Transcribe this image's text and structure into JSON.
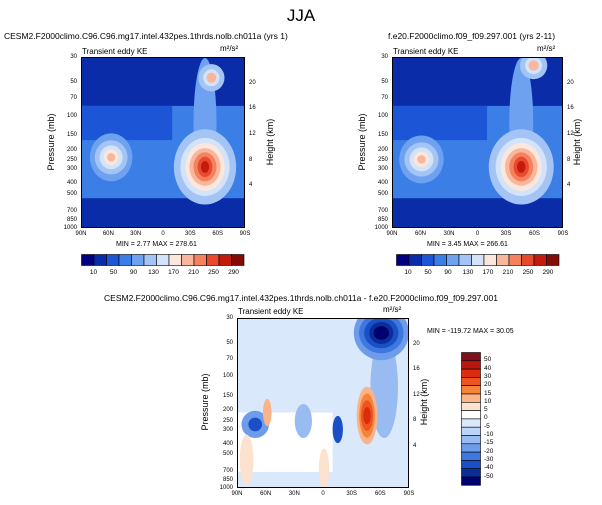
{
  "page_title": "JJA",
  "chart_data": [
    {
      "type": "heatmap",
      "title": "CESM2.F2000climo.C96.C96.mg17.intel.432pes.1thrds.nolb.ch011a (yrs 1)",
      "subtitle": "Transient eddy KE",
      "units": "m²/s²",
      "xlabel": "",
      "ylabel": "Pressure (mb)",
      "ylabel_right": "Height (km)",
      "x_ticks": [
        "90N",
        "60N",
        "30N",
        "0",
        "30S",
        "60S",
        "90S"
      ],
      "y_ticks": [
        "30",
        "50",
        "70",
        "100",
        "150",
        "200",
        "250",
        "300",
        "400",
        "500",
        "700",
        "850",
        "1000"
      ],
      "y_ticks_right": [
        "20",
        "16",
        "12",
        "8",
        "4"
      ],
      "ylim": [
        1000,
        30
      ],
      "y_scale": "log",
      "min_max_text": "MIN =   2.77  MAX = 278.61",
      "colorbar_levels": [
        "10",
        "50",
        "90",
        "130",
        "170",
        "210",
        "250",
        "290"
      ],
      "features": [
        {
          "lat": -45,
          "p": 280,
          "max": 278.61
        },
        {
          "lat": 58,
          "p": 230,
          "max": 170
        },
        {
          "lat": -52,
          "p": 45,
          "max": 120
        }
      ]
    },
    {
      "type": "heatmap",
      "title": "f.e20.F2000climo.f09_f09.297.001 (yrs 2-11)",
      "subtitle": "Transient eddy KE",
      "units": "m²/s²",
      "xlabel": "",
      "ylabel": "Pressure (mb)",
      "ylabel_right": "Height (km)",
      "x_ticks": [
        "90N",
        "60N",
        "30N",
        "0",
        "30S",
        "60S",
        "90S"
      ],
      "y_ticks": [
        "30",
        "50",
        "70",
        "100",
        "150",
        "200",
        "250",
        "300",
        "400",
        "500",
        "700",
        "850",
        "1000"
      ],
      "y_ticks_right": [
        "20",
        "16",
        "12",
        "8",
        "4"
      ],
      "ylim": [
        1000,
        30
      ],
      "y_scale": "log",
      "min_max_text": "MIN =   3.45  MAX = 266.61",
      "colorbar_levels": [
        "10",
        "50",
        "90",
        "130",
        "170",
        "210",
        "250",
        "290"
      ],
      "features": [
        {
          "lat": -45,
          "p": 280,
          "max": 266.61
        },
        {
          "lat": 60,
          "p": 240,
          "max": 160
        },
        {
          "lat": -58,
          "p": 35,
          "max": 180
        }
      ]
    },
    {
      "type": "heatmap",
      "title": "CESM2.F2000climo.C96.C96.mg17.intel.432pes.1thrds.nolb.ch011a - f.e20.F2000climo.f09_f09.297.001",
      "subtitle": "Transient eddy KE",
      "units": "m²/s²",
      "xlabel": "",
      "ylabel": "Pressure (mb)",
      "ylabel_right": "Height (km)",
      "x_ticks": [
        "90N",
        "60N",
        "30N",
        "0",
        "30S",
        "60S",
        "90S"
      ],
      "y_ticks": [
        "30",
        "50",
        "70",
        "100",
        "150",
        "200",
        "250",
        "300",
        "400",
        "500",
        "700",
        "850",
        "1000"
      ],
      "y_ticks_right": [
        "20",
        "16",
        "12",
        "8",
        "4"
      ],
      "ylim": [
        1000,
        30
      ],
      "y_scale": "log",
      "min_max_text": "MIN = -119.72  MAX =  30.05",
      "colorbar_levels": [
        "50",
        "40",
        "30",
        "20",
        "15",
        "10",
        "5",
        "0",
        "-5",
        "-10",
        "-15",
        "-20",
        "-30",
        "-40",
        "-50"
      ],
      "features": [
        {
          "lat": -60,
          "p": 40,
          "max": -119.72
        },
        {
          "lat": -45,
          "p": 220,
          "max": 30.05
        }
      ]
    }
  ],
  "colors": {
    "seq": [
      "#000080",
      "#0a2ca8",
      "#1c55d6",
      "#3a7ee6",
      "#6ea2f0",
      "#a3c4f5",
      "#d2e3fa",
      "#fbe7dd",
      "#f8b79d",
      "#f4825f",
      "#e84a2e",
      "#c41c0c",
      "#820c06"
    ],
    "div": [
      "#80101c",
      "#b8180f",
      "#dc2b0e",
      "#ed5520",
      "#f6833a",
      "#fbb48a",
      "#fde2cf",
      "#ffffff",
      "#dae8fb",
      "#bcd4f7",
      "#98bbf2",
      "#6f9cea",
      "#3e78de",
      "#1a4fc6",
      "#0a2e99",
      "#000070"
    ]
  }
}
